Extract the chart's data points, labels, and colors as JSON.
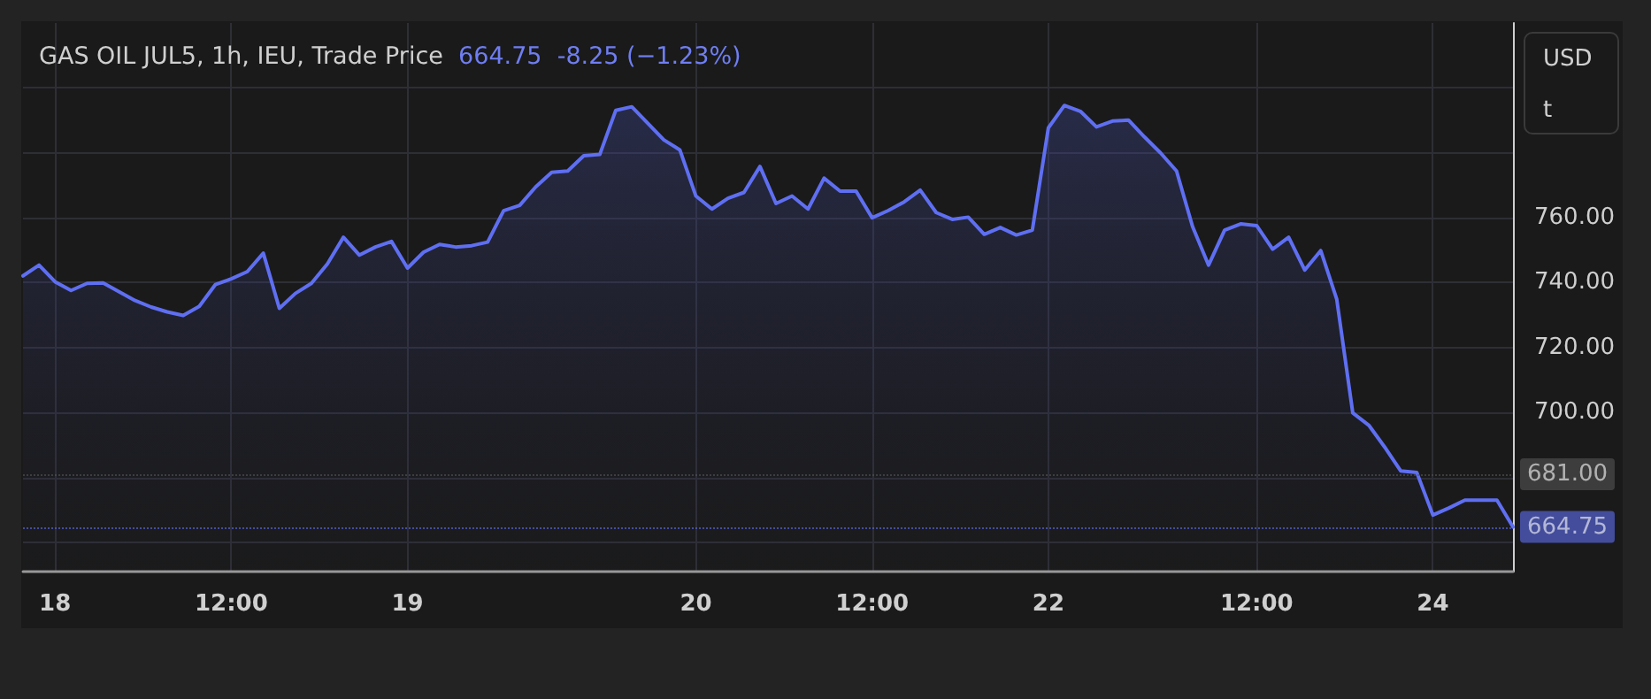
{
  "chart_data": {
    "type": "area",
    "title": "GAS OIL JUL5, 1h, IEU, Trade Price",
    "subtitle": "664.75  -8.25 (−1.23%)",
    "ylabel": "USD\nt",
    "categories": [
      null,
      null,
      "18",
      null,
      null,
      null,
      null,
      null,
      null,
      null,
      null,
      null,
      null,
      "12:00",
      null,
      null,
      null,
      null,
      null,
      null,
      null,
      null,
      null,
      null,
      "19",
      null,
      null,
      null,
      null,
      null,
      null,
      null,
      null,
      null,
      null,
      null,
      null,
      null,
      null,
      null,
      null,
      null,
      "20",
      null,
      null,
      null,
      null,
      null,
      null,
      null,
      null,
      null,
      null,
      "12:00",
      null,
      null,
      null,
      null,
      null,
      null,
      null,
      null,
      null,
      null,
      "22",
      null,
      null,
      null,
      null,
      null,
      null,
      null,
      null,
      null,
      null,
      null,
      null,
      "12:00",
      null,
      null,
      null,
      null,
      null,
      null,
      null,
      null,
      null,
      null,
      "24",
      null,
      null,
      null,
      null,
      null
    ],
    "values": [
      742.1,
      745.4,
      740.3,
      737.6,
      739.8,
      739.9,
      737.2,
      734.5,
      732.5,
      731.0,
      729.9,
      732.7,
      739.4,
      741.2,
      743.4,
      749.1,
      732.1,
      736.7,
      739.8,
      745.8,
      754.0,
      748.5,
      751.0,
      752.7,
      744.5,
      749.4,
      751.8,
      751.0,
      751.4,
      752.5,
      762.2,
      763.8,
      769.5,
      774.0,
      774.4,
      779.1,
      779.5,
      793.1,
      794.2,
      789.1,
      784.0,
      780.9,
      766.7,
      762.7,
      766.0,
      767.8,
      775.8,
      764.4,
      766.7,
      762.7,
      772.2,
      768.2,
      768.2,
      760.0,
      762.2,
      764.9,
      768.5,
      761.6,
      759.5,
      760.2,
      754.9,
      757.0,
      754.7,
      756.2,
      787.7,
      794.6,
      792.8,
      788.0,
      789.8,
      790.1,
      784.9,
      780.0,
      774.4,
      757.3,
      745.4,
      756.2,
      758.1,
      757.6,
      750.3,
      754.0,
      743.9,
      749.9,
      734.9,
      699.9,
      696.1,
      689.3,
      682.0,
      681.5,
      668.4,
      670.6,
      673.0,
      673.0,
      673.0,
      664.75
    ],
    "color": "#5f6ff2",
    "ylim": [
      651,
      820
    ],
    "yticks": [
      {
        "value": 660,
        "label": null
      },
      {
        "value": 680,
        "label": null
      },
      {
        "value": 700,
        "label": "700.00"
      },
      {
        "value": 720,
        "label": "720.00"
      },
      {
        "value": 740,
        "label": "740.00"
      },
      {
        "value": 760,
        "label": "760.00"
      },
      {
        "value": 780,
        "label": null
      },
      {
        "value": 800,
        "label": null
      }
    ],
    "grid": true,
    "marker": "none",
    "line_style": "solid",
    "ref_lines": [
      {
        "axis": "y",
        "value": 681,
        "label": "681.00",
        "color": "#555555",
        "line_style": "dotted"
      },
      {
        "axis": "y",
        "value": 664.75,
        "label": "664.75",
        "color": "#5f6ff2",
        "line_style": "dotted"
      }
    ]
  }
}
